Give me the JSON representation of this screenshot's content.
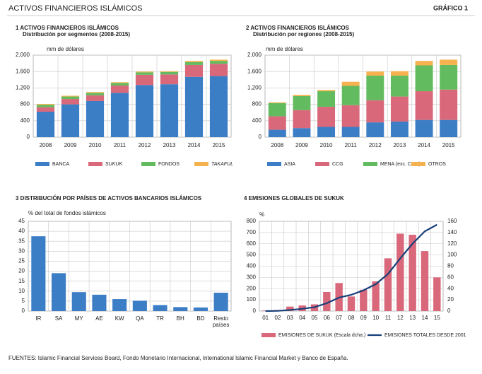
{
  "title": "ACTIVOS FINANCIEROS ISLÁMICOS",
  "figure_label": "GRÁFICO 1",
  "source": "FUENTES: Islamic Financial Services Board, Fondo Monetario Internacional, International Islamic Financial Market y Banco de España.",
  "chart_data": [
    {
      "type": "bar",
      "stacked": true,
      "title": "1 ACTIVOS FINANCIEROS ISLÁMICOS",
      "subtitle": "Distribución por segmentos (2008-2015)",
      "y_label": "mm de dólares",
      "categories": [
        "2008",
        "2009",
        "2010",
        "2011",
        "2012",
        "2013",
        "2014",
        "2015"
      ],
      "series": [
        {
          "name": "BANCA",
          "color": "#3b7ec6",
          "values": [
            620,
            800,
            880,
            1080,
            1270,
            1290,
            1470,
            1490
          ]
        },
        {
          "name": "SUKUK",
          "color": "#d9687b",
          "values": [
            110,
            130,
            140,
            180,
            250,
            240,
            290,
            300
          ]
        },
        {
          "name": "FONDOS",
          "color": "#62bb5e",
          "values": [
            60,
            60,
            60,
            60,
            60,
            60,
            70,
            70
          ]
        },
        {
          "name": "TAKAFUL",
          "color": "#f6b24e",
          "values": [
            20,
            20,
            20,
            20,
            20,
            20,
            30,
            30
          ]
        }
      ],
      "ylim": [
        0,
        2000
      ],
      "yticks": [
        0,
        400,
        800,
        {
          "value": 1200,
          "label": "1.200"
        },
        {
          "value": 1600,
          "label": "1.600"
        },
        {
          "value": 2000,
          "label": "2.000"
        }
      ],
      "grid": true
    },
    {
      "type": "bar",
      "stacked": true,
      "title": "2 ACTIVOS FINANCIEROS ISLÁMICOS",
      "subtitle": "Distribución por regiones (2008-2015)",
      "y_label": "mm de dólares",
      "categories": [
        "2008",
        "2009",
        "2010",
        "2011",
        "2012",
        "2013",
        "2014",
        "2015"
      ],
      "series": [
        {
          "name": "ASIA",
          "color": "#3b7ec6",
          "values": [
            180,
            220,
            250,
            250,
            360,
            380,
            420,
            420
          ]
        },
        {
          "name": "CCG",
          "color": "#d9687b",
          "values": [
            330,
            440,
            490,
            530,
            540,
            610,
            700,
            740
          ]
        },
        {
          "name": "MENA (exc. CCG)",
          "color": "#62bb5e",
          "values": [
            320,
            340,
            380,
            470,
            600,
            510,
            630,
            600
          ]
        },
        {
          "name": "OTROS",
          "color": "#f6b24e",
          "values": [
            20,
            30,
            30,
            100,
            100,
            110,
            110,
            130
          ]
        }
      ],
      "ylim": [
        0,
        2000
      ],
      "yticks": [
        0,
        400,
        800,
        {
          "value": 1200,
          "label": "1.200"
        },
        {
          "value": 1600,
          "label": "1.600"
        },
        {
          "value": 2000,
          "label": "2.000"
        }
      ],
      "grid": true
    },
    {
      "type": "bar",
      "title": "3 DISTRIBUCIÓN POR PAÍSES DE ACTIVOS BANCARIOS ISLÁMICOS",
      "y_label": "% del total de fondos islámicos",
      "categories": [
        "IR",
        "SA",
        "MY",
        "AE",
        "KW",
        "QA",
        "TR",
        "BH",
        "BD",
        "Resto países"
      ],
      "values": [
        37.5,
        19,
        9.5,
        8.2,
        6,
        5.2,
        3,
        2,
        1.8,
        9.2
      ],
      "color": "#3b7ec6",
      "ylim": [
        0,
        45
      ],
      "yticks": [
        0,
        5,
        10,
        15,
        20,
        25,
        30,
        35,
        40,
        45
      ],
      "grid": true
    },
    {
      "type": "combo",
      "title": "4 EMISIONES GLOBALES DE SUKUK",
      "y_label": "%",
      "categories": [
        "01",
        "02",
        "03",
        "04",
        "05",
        "06",
        "07",
        "08",
        "09",
        "10",
        "11",
        "12",
        "13",
        "14",
        "15"
      ],
      "series": [
        {
          "name": "EMISIONES DE SUKUK (Escala dcha.)",
          "type": "bar",
          "axis": "y2",
          "color": "#d9687b",
          "values": [
            1,
            2,
            8,
            10,
            12,
            34,
            50,
            26,
            38,
            53,
            94,
            138,
            136,
            107,
            60
          ]
        },
        {
          "name": "EMISIONES TOTALES DESDE 2001",
          "type": "line",
          "color": "#173f78",
          "values": [
            0,
            2,
            10,
            20,
            35,
            70,
            120,
            145,
            185,
            240,
            330,
            470,
            600,
            710,
            770
          ]
        }
      ],
      "ylim": [
        0,
        800
      ],
      "yticks": [
        0,
        100,
        200,
        300,
        400,
        500,
        600,
        700,
        800
      ],
      "y2lim": [
        0,
        160
      ],
      "y2ticks": [
        0,
        20,
        40,
        60,
        80,
        100,
        120,
        140,
        160
      ],
      "grid": true
    }
  ]
}
